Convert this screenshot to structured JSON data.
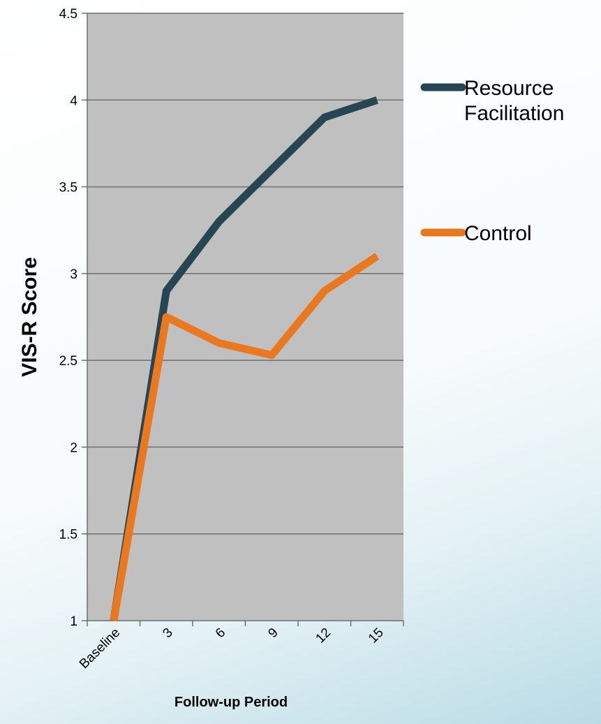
{
  "chart_data": {
    "type": "line",
    "categories": [
      "Baseline",
      "3",
      "6",
      "9",
      "12",
      "15"
    ],
    "series": [
      {
        "name": "Resource Facilitation",
        "name_lines": [
          "Resource",
          "Facilitation"
        ],
        "values": [
          1.0,
          2.9,
          3.3,
          3.6,
          3.9,
          4.0
        ],
        "color": "#264653"
      },
      {
        "name": "Control",
        "name_lines": [
          "Control"
        ],
        "values": [
          1.0,
          2.75,
          2.6,
          2.53,
          2.9,
          3.1
        ],
        "color": "#e9781e"
      }
    ],
    "ylabel": "VIS-R Score",
    "xlabel": "Follow-up Period",
    "ylim": [
      1,
      4.5
    ],
    "yticks": [
      "1",
      "1.5",
      "2",
      "2.5",
      "3",
      "3.5",
      "4",
      "4.5"
    ],
    "grid": true,
    "legend_position": "right",
    "plot_background": "#c0c0c0",
    "gridline_color": "#6e6e6e"
  }
}
